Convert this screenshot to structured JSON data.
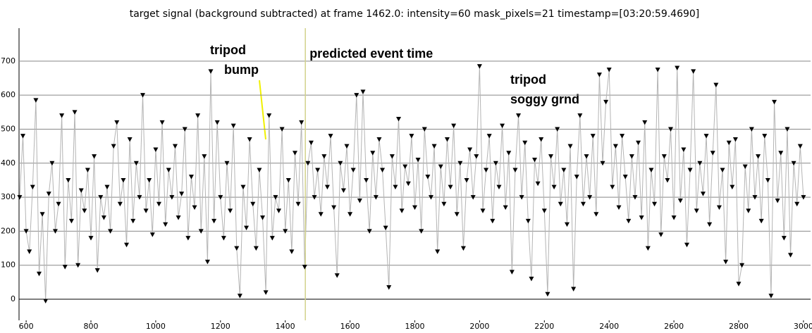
{
  "chart_data": {
    "type": "scatter",
    "title": "target signal (background subtracted) at frame 1462.0: intensity=60 mask_pixels=21 timestamp=[03:20:59.4690]",
    "x": [
      580,
      590,
      600,
      610,
      620,
      630,
      640,
      650,
      660,
      670,
      680,
      690,
      700,
      710,
      720,
      730,
      740,
      750,
      760,
      770,
      780,
      790,
      800,
      810,
      820,
      830,
      840,
      850,
      860,
      870,
      880,
      890,
      900,
      910,
      920,
      930,
      940,
      950,
      960,
      970,
      980,
      990,
      1000,
      1010,
      1020,
      1030,
      1040,
      1050,
      1060,
      1070,
      1080,
      1090,
      1100,
      1110,
      1120,
      1130,
      1140,
      1150,
      1160,
      1170,
      1180,
      1190,
      1200,
      1210,
      1220,
      1230,
      1240,
      1250,
      1260,
      1270,
      1280,
      1290,
      1300,
      1310,
      1320,
      1330,
      1340,
      1350,
      1360,
      1370,
      1380,
      1390,
      1400,
      1410,
      1420,
      1430,
      1440,
      1450,
      1460,
      1470,
      1480,
      1490,
      1500,
      1510,
      1520,
      1530,
      1540,
      1550,
      1560,
      1570,
      1580,
      1590,
      1600,
      1610,
      1620,
      1630,
      1640,
      1650,
      1660,
      1670,
      1680,
      1690,
      1700,
      1710,
      1720,
      1730,
      1740,
      1750,
      1760,
      1770,
      1780,
      1790,
      1800,
      1810,
      1820,
      1830,
      1840,
      1850,
      1860,
      1870,
      1880,
      1890,
      1900,
      1910,
      1920,
      1930,
      1940,
      1950,
      1960,
      1970,
      1980,
      1990,
      2000,
      2010,
      2020,
      2030,
      2040,
      2050,
      2060,
      2070,
      2080,
      2090,
      2100,
      2110,
      2120,
      2130,
      2140,
      2150,
      2160,
      2170,
      2180,
      2190,
      2200,
      2210,
      2220,
      2230,
      2240,
      2250,
      2260,
      2270,
      2280,
      2290,
      2300,
      2310,
      2320,
      2330,
      2340,
      2350,
      2360,
      2370,
      2380,
      2390,
      2400,
      2410,
      2420,
      2430,
      2440,
      2450,
      2460,
      2470,
      2480,
      2490,
      2500,
      2510,
      2520,
      2530,
      2540,
      2550,
      2560,
      2570,
      2580,
      2590,
      2600,
      2610,
      2620,
      2630,
      2640,
      2650,
      2660,
      2670,
      2680,
      2690,
      2700,
      2710,
      2720,
      2730,
      2740,
      2750,
      2760,
      2770,
      2780,
      2790,
      2800,
      2810,
      2820,
      2830,
      2840,
      2850,
      2860,
      2870,
      2880,
      2890,
      2900,
      2910,
      2920,
      2930,
      2940,
      2950,
      2960,
      2970,
      2980,
      2990,
      3000
    ],
    "values": [
      300,
      480,
      200,
      140,
      330,
      585,
      75,
      250,
      -5,
      310,
      400,
      200,
      280,
      540,
      95,
      350,
      230,
      550,
      100,
      320,
      260,
      380,
      180,
      420,
      85,
      300,
      240,
      330,
      200,
      450,
      520,
      280,
      350,
      160,
      470,
      230,
      400,
      300,
      600,
      260,
      350,
      190,
      440,
      280,
      520,
      220,
      380,
      300,
      450,
      240,
      310,
      500,
      180,
      360,
      270,
      540,
      200,
      420,
      110,
      670,
      230,
      520,
      300,
      180,
      400,
      260,
      510,
      150,
      10,
      330,
      210,
      470,
      280,
      150,
      380,
      240,
      20,
      540,
      180,
      300,
      260,
      500,
      200,
      350,
      140,
      430,
      280,
      520,
      95,
      400,
      460,
      300,
      380,
      250,
      420,
      330,
      480,
      270,
      70,
      400,
      320,
      450,
      250,
      380,
      600,
      290,
      610,
      350,
      200,
      430,
      300,
      470,
      380,
      210,
      35,
      420,
      330,
      530,
      260,
      390,
      340,
      480,
      270,
      410,
      200,
      500,
      360,
      300,
      450,
      140,
      390,
      280,
      470,
      330,
      510,
      250,
      400,
      150,
      350,
      440,
      300,
      420,
      685,
      260,
      380,
      480,
      230,
      400,
      330,
      510,
      270,
      430,
      80,
      380,
      540,
      300,
      460,
      230,
      60,
      410,
      340,
      470,
      260,
      15,
      420,
      330,
      500,
      280,
      380,
      220,
      450,
      30,
      360,
      540,
      280,
      420,
      300,
      480,
      250,
      660,
      400,
      580,
      675,
      330,
      450,
      270,
      480,
      360,
      230,
      420,
      300,
      460,
      240,
      520,
      150,
      380,
      280,
      675,
      190,
      420,
      350,
      500,
      240,
      680,
      290,
      440,
      160,
      380,
      670,
      260,
      400,
      310,
      480,
      220,
      430,
      630,
      270,
      380,
      110,
      460,
      330,
      470,
      45,
      100,
      390,
      260,
      500,
      300,
      420,
      230,
      480,
      350,
      10,
      580,
      290,
      430,
      180,
      500,
      130,
      400,
      280,
      450,
      300
    ],
    "marker_color": "#000000",
    "line_color": "#b4b4b4",
    "xlim": [
      578,
      3022
    ],
    "ylim": [
      -62,
      797
    ],
    "xticks": [
      600,
      800,
      1000,
      1200,
      1400,
      1600,
      1800,
      2000,
      2200,
      2400,
      2600,
      2800,
      3000
    ],
    "yticks": [
      0,
      100,
      200,
      300,
      400,
      500,
      600,
      700
    ],
    "grid": true,
    "vline": {
      "x": 1462,
      "label": "predicted event time",
      "color": "#d2d28c"
    },
    "annotations": [
      [
        "tripod",
        "bump"
      ],
      [
        "tripod",
        "soggy grnd"
      ]
    ]
  }
}
